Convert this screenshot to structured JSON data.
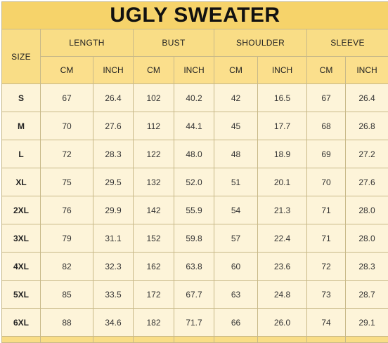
{
  "title": "UGLY SWEATER",
  "headers": {
    "size": "SIZE",
    "length": "LENGTH",
    "bust": "BUST",
    "shoulder": "SHOULDER",
    "sleeve": "SLEEVE"
  },
  "units": [
    "CM",
    "INCH",
    "CM",
    "INCH",
    "CM",
    "INCH",
    "CM",
    "INCH"
  ],
  "rows": [
    {
      "size": "S",
      "values": [
        "67",
        "26.4",
        "102",
        "40.2",
        "42",
        "16.5",
        "67",
        "26.4"
      ]
    },
    {
      "size": "M",
      "values": [
        "70",
        "27.6",
        "112",
        "44.1",
        "45",
        "17.7",
        "68",
        "26.8"
      ]
    },
    {
      "size": "L",
      "values": [
        "72",
        "28.3",
        "122",
        "48.0",
        "48",
        "18.9",
        "69",
        "27.2"
      ]
    },
    {
      "size": "XL",
      "values": [
        "75",
        "29.5",
        "132",
        "52.0",
        "51",
        "20.1",
        "70",
        "27.6"
      ]
    },
    {
      "size": "2XL",
      "values": [
        "76",
        "29.9",
        "142",
        "55.9",
        "54",
        "21.3",
        "71",
        "28.0"
      ]
    },
    {
      "size": "3XL",
      "values": [
        "79",
        "31.1",
        "152",
        "59.8",
        "57",
        "22.4",
        "71",
        "28.0"
      ]
    },
    {
      "size": "4XL",
      "values": [
        "82",
        "32.3",
        "162",
        "63.8",
        "60",
        "23.6",
        "72",
        "28.3"
      ]
    },
    {
      "size": "5XL",
      "values": [
        "85",
        "33.5",
        "172",
        "67.7",
        "63",
        "24.8",
        "73",
        "28.7"
      ]
    },
    {
      "size": "6XL",
      "values": [
        "88",
        "34.6",
        "182",
        "71.7",
        "66",
        "26.0",
        "74",
        "29.1"
      ]
    }
  ]
}
